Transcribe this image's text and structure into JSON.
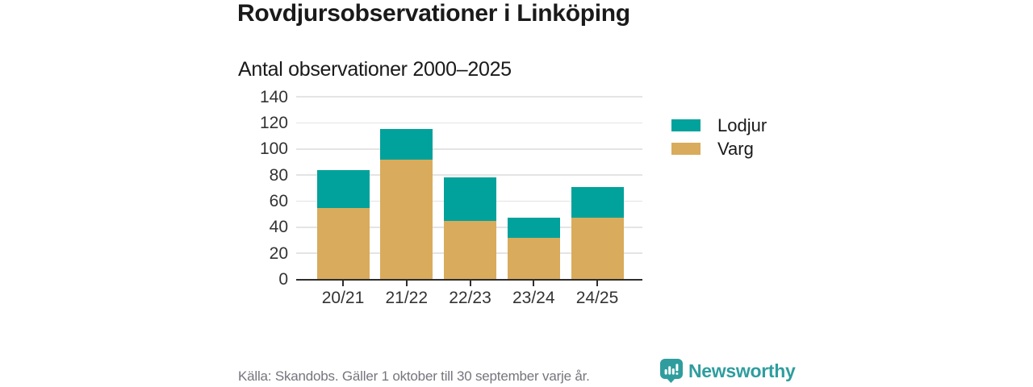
{
  "header": {
    "title": "Rovdjursobservationer i Linköping",
    "subtitle": "Antal observationer 2000–2025"
  },
  "footer": {
    "source": "Källa: Skandobs. Gäller 1 oktober till 30 september varje år.",
    "brand": "Newsworthy",
    "brand_color": "#2f9d9e",
    "brand_icon": "bar-chart-speech-bubble-icon"
  },
  "chart_data": {
    "type": "bar",
    "stacked": true,
    "title": "Rovdjursobservationer i Linköping",
    "subtitle": "Antal observationer 2000–2025",
    "categories": [
      "20/21",
      "21/22",
      "22/23",
      "23/24",
      "24/25"
    ],
    "series": [
      {
        "name": "Varg",
        "color": "#d9ab5c",
        "values": [
          55,
          92,
          45,
          32,
          47
        ]
      },
      {
        "name": "Lodjur",
        "color": "#00a29b",
        "values": [
          29,
          23,
          33,
          15,
          24
        ]
      }
    ],
    "totals": [
      84,
      115,
      78,
      47,
      71
    ],
    "xlabel": "",
    "ylabel": "",
    "ylim": [
      0,
      140
    ],
    "yticks": [
      0,
      20,
      40,
      60,
      80,
      100,
      120,
      140
    ],
    "grid": true,
    "gridline_color": "#e4e4e4",
    "axis_color": "#2e2e2e",
    "legend_position": "right",
    "legend_order": [
      "Lodjur",
      "Varg"
    ]
  }
}
